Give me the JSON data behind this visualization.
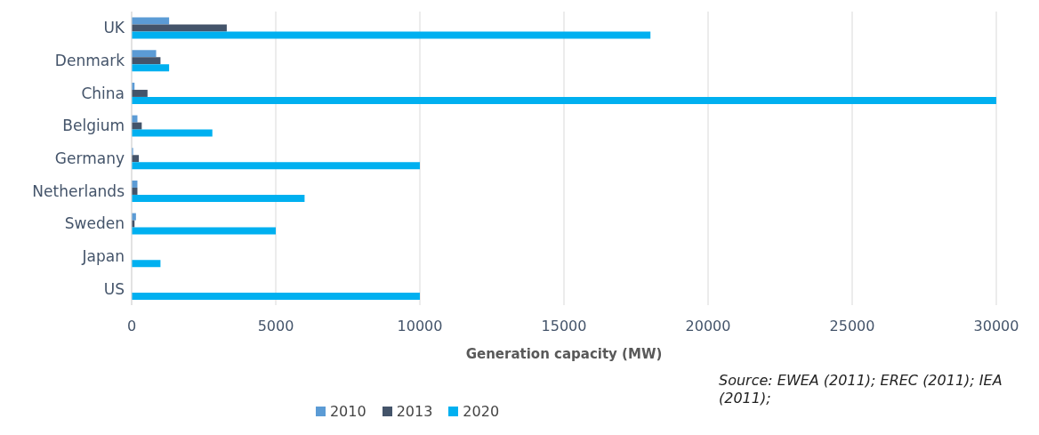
{
  "chart_data": {
    "type": "bar",
    "orientation": "horizontal",
    "xlabel": "Generation capacity (MW)",
    "categories": [
      "UK",
      "Denmark",
      "China",
      "Belgium",
      "Germany",
      "Netherlands",
      "Sweden",
      "Japan",
      "US"
    ],
    "series": [
      {
        "name": "2010",
        "color": "#5b9bd5",
        "values": [
          1300,
          850,
          100,
          200,
          50,
          200,
          150,
          0,
          0
        ]
      },
      {
        "name": "2013",
        "color": "#44546a",
        "values": [
          3300,
          1000,
          550,
          350,
          250,
          200,
          100,
          0,
          0
        ]
      },
      {
        "name": "2020",
        "color": "#00b0f0",
        "values": [
          18000,
          1300,
          30000,
          2800,
          10000,
          6000,
          5000,
          1000,
          10000
        ]
      }
    ],
    "xlim": [
      0,
      30000
    ],
    "xticks": [
      0,
      5000,
      10000,
      15000,
      20000,
      25000,
      30000
    ],
    "grid": "x",
    "legend": "bottom",
    "annotations": [
      "Source: EWEA (2011); EREC (2011); IEA (2011);"
    ]
  }
}
